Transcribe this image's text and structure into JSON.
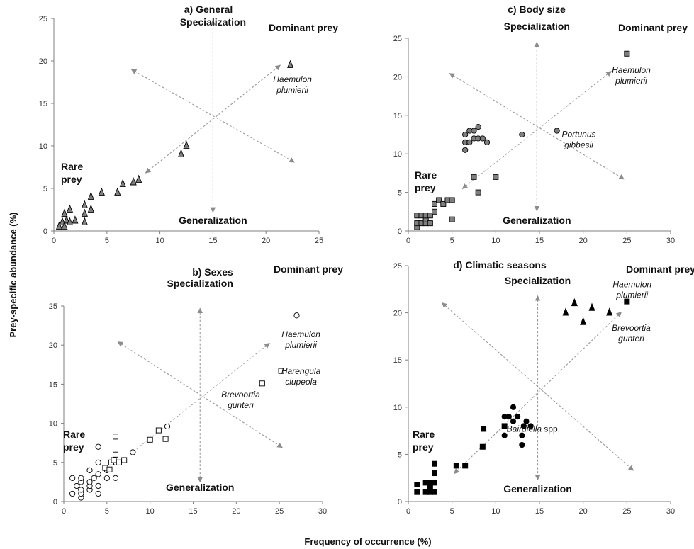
{
  "figure": {
    "y_title": "Prey-specific abundance (%)",
    "x_title": "Frequency of occurrence (%)"
  },
  "colors": {
    "axis": "#7f7f7f",
    "guide": "#9a9a9a",
    "gray_fill": "#7f7f7f",
    "black": "#000000",
    "white": "#ffffff"
  },
  "chart_data": [
    {
      "id": "a",
      "type": "scatter",
      "title": "a) General",
      "xlim": [
        0,
        25
      ],
      "ylim": [
        0,
        25
      ],
      "x_ticks": [
        "0",
        "5",
        "10",
        "15",
        "20",
        "25"
      ],
      "y_ticks": [
        "0",
        "5",
        "10",
        "15",
        "20",
        "25"
      ],
      "labels": {
        "top": "Specialization",
        "bottom": "Generalization",
        "corner": "Dominant prey",
        "rare": [
          "Rare",
          "prey"
        ]
      },
      "series": [
        {
          "marker": "triangle",
          "fill": "#7f7f7f",
          "points": [
            [
              0.5,
              0.5
            ],
            [
              0.8,
              1
            ],
            [
              1,
              0.5
            ],
            [
              1,
              2
            ],
            [
              1.2,
              1.2
            ],
            [
              1.5,
              1
            ],
            [
              1.5,
              2.5
            ],
            [
              2,
              1.2
            ],
            [
              2.9,
              1
            ],
            [
              2.9,
              2
            ],
            [
              2.9,
              3
            ],
            [
              3.5,
              2.5
            ],
            [
              3.5,
              4
            ],
            [
              4.5,
              4.5
            ],
            [
              6,
              4.5
            ],
            [
              6.5,
              5.5
            ],
            [
              7.5,
              5.7
            ],
            [
              8,
              6
            ],
            [
              12,
              9
            ],
            [
              12.5,
              10
            ],
            [
              22.3,
              19.5
            ]
          ]
        }
      ],
      "annotations": [
        {
          "lines": [
            "Haemulon",
            "plumierii"
          ],
          "italic": true,
          "x": 22.5,
          "y": 17.5
        }
      ]
    },
    {
      "id": "c",
      "type": "scatter",
      "title": "c) Body size",
      "xlim": [
        0,
        30
      ],
      "ylim": [
        0,
        25
      ],
      "x_ticks": [
        "0",
        "5",
        "10",
        "15",
        "20",
        "25",
        "30"
      ],
      "y_ticks": [
        "0",
        "5",
        "10",
        "15",
        "20",
        "25"
      ],
      "labels": {
        "top": "Specialization",
        "bottom": "Generalization",
        "corner": "Dominant  prey",
        "rare": [
          "Rare",
          "prey"
        ]
      },
      "series": [
        {
          "marker": "square",
          "fill": "#7f7f7f",
          "points": [
            [
              1,
              0.5
            ],
            [
              1,
              1
            ],
            [
              1,
              2
            ],
            [
              1.5,
              1
            ],
            [
              1.5,
              2
            ],
            [
              2,
              1
            ],
            [
              2,
              1.5
            ],
            [
              2,
              2
            ],
            [
              2.5,
              1
            ],
            [
              2.5,
              2
            ],
            [
              3,
              2.5
            ],
            [
              3,
              3.5
            ],
            [
              3.5,
              4
            ],
            [
              4,
              3.5
            ],
            [
              4.5,
              4
            ],
            [
              5,
              1.5
            ],
            [
              5,
              4
            ],
            [
              7.5,
              7
            ],
            [
              8,
              5
            ],
            [
              10,
              7
            ],
            [
              25,
              23
            ]
          ]
        },
        {
          "marker": "circle",
          "fill": "#7f7f7f",
          "points": [
            [
              6.5,
              10.5
            ],
            [
              6.5,
              11.5
            ],
            [
              6.5,
              12.5
            ],
            [
              7,
              11.5
            ],
            [
              7,
              13
            ],
            [
              7.5,
              12
            ],
            [
              7.5,
              13
            ],
            [
              8,
              13.5
            ],
            [
              8,
              12
            ],
            [
              8.5,
              12
            ],
            [
              9,
              11.5
            ],
            [
              13,
              12.5
            ],
            [
              17,
              13
            ]
          ]
        }
      ],
      "annotations": [
        {
          "lines": [
            "Haemulon",
            "plumierii"
          ],
          "italic": true,
          "x": 25.5,
          "y": 20.5
        },
        {
          "lines": [
            "Portunus",
            "gibbesii"
          ],
          "italic": true,
          "x": 19.5,
          "y": 12.2
        }
      ]
    },
    {
      "id": "b",
      "type": "scatter",
      "title": "b) Sexes",
      "xlim": [
        0,
        30
      ],
      "ylim": [
        0,
        25
      ],
      "x_ticks": [
        "0",
        "5",
        "10",
        "15",
        "20",
        "25",
        "30"
      ],
      "y_ticks": [
        "0",
        "5",
        "10",
        "15",
        "20",
        "25"
      ],
      "labels": {
        "top": "Specialization",
        "bottom": "Generalization",
        "corner": "Dominant prey",
        "rare": [
          "Rare",
          "prey"
        ]
      },
      "series": [
        {
          "marker": "circle",
          "fill": "#ffffff",
          "points": [
            [
              1,
              1
            ],
            [
              1,
              3
            ],
            [
              1.5,
              2
            ],
            [
              2,
              0.5
            ],
            [
              2,
              1
            ],
            [
              2,
              1.5
            ],
            [
              2,
              2.5
            ],
            [
              2,
              3
            ],
            [
              3,
              1.5
            ],
            [
              3,
              2
            ],
            [
              3,
              2.5
            ],
            [
              3,
              4
            ],
            [
              3.5,
              3
            ],
            [
              4,
              1
            ],
            [
              4,
              2
            ],
            [
              4,
              3.5
            ],
            [
              4,
              5
            ],
            [
              4,
              7
            ],
            [
              5,
              3
            ],
            [
              5,
              4
            ],
            [
              6,
              3
            ],
            [
              6,
              5
            ],
            [
              8,
              6.3
            ],
            [
              12,
              9.6
            ],
            [
              27,
              23.8
            ]
          ]
        },
        {
          "marker": "square",
          "fill": "#ffffff",
          "points": [
            [
              4.8,
              4.3
            ],
            [
              5.3,
              4.1
            ],
            [
              5.5,
              5
            ],
            [
              5.8,
              5.3
            ],
            [
              6,
              6
            ],
            [
              6,
              8.3
            ],
            [
              6.4,
              5
            ],
            [
              7,
              5.3
            ],
            [
              10,
              7.9
            ],
            [
              11,
              9.1
            ],
            [
              11.8,
              8
            ],
            [
              23,
              15.1
            ],
            [
              25.2,
              16.7
            ]
          ]
        }
      ],
      "annotations": [
        {
          "lines": [
            "Haemulon",
            "plumierii"
          ],
          "italic": true,
          "x": 27.5,
          "y": 21
        },
        {
          "lines": [
            "Harengula",
            "clupeola"
          ],
          "italic": true,
          "x": 27.5,
          "y": 16.3
        },
        {
          "lines": [
            "Brevoortia",
            "gunteri"
          ],
          "italic": true,
          "x": 20.5,
          "y": 13.3
        }
      ]
    },
    {
      "id": "d",
      "type": "scatter",
      "title": "d) Climatic seasons",
      "xlim": [
        0,
        30
      ],
      "ylim": [
        0,
        25
      ],
      "x_ticks": [
        "0",
        "5",
        "10",
        "15",
        "20",
        "25",
        "30"
      ],
      "y_ticks": [
        "0",
        "5",
        "10",
        "15",
        "20",
        "25"
      ],
      "labels": {
        "top": "Specialization",
        "bottom": "Generalization",
        "corner": "Dominant prey",
        "rare": [
          "Rare",
          "prey"
        ]
      },
      "series": [
        {
          "marker": "square",
          "fill": "#000000",
          "points": [
            [
              1,
              1
            ],
            [
              1,
              1.8
            ],
            [
              2,
              1
            ],
            [
              2,
              2
            ],
            [
              2.5,
              1
            ],
            [
              2.5,
              1.5
            ],
            [
              2.5,
              2
            ],
            [
              3,
              1
            ],
            [
              3,
              2
            ],
            [
              3,
              3
            ],
            [
              3,
              4
            ],
            [
              5.5,
              3.8
            ],
            [
              6.5,
              3.8
            ],
            [
              8.5,
              5.8
            ],
            [
              8.6,
              7.7
            ],
            [
              11,
              8
            ],
            [
              25,
              21.2
            ]
          ]
        },
        {
          "marker": "circle",
          "fill": "#000000",
          "points": [
            [
              11,
              7
            ],
            [
              11,
              9
            ],
            [
              11.5,
              9
            ],
            [
              12,
              10
            ],
            [
              12,
              8.5
            ],
            [
              12.5,
              9
            ],
            [
              13,
              7
            ],
            [
              13,
              6
            ],
            [
              13.2,
              8
            ],
            [
              13.5,
              8.5
            ],
            [
              14,
              8
            ]
          ]
        },
        {
          "marker": "triangle",
          "fill": "#000000",
          "points": [
            [
              18,
              20
            ],
            [
              19,
              21
            ],
            [
              20,
              19
            ],
            [
              21,
              20.5
            ],
            [
              23,
              20
            ]
          ]
        }
      ],
      "annotations": [
        {
          "lines": [
            "Haemulon",
            "plumierii"
          ],
          "italic": true,
          "x": 25.6,
          "y": 22.7
        },
        {
          "lines": [
            "Brevoortia",
            "gunteri"
          ],
          "italic": true,
          "x": 25.5,
          "y": 18.1
        },
        {
          "lines": [
            "Bairdiella"
          ],
          "italic": true,
          "suffix": " spp.",
          "x": 14.3,
          "y": 7.4
        }
      ]
    }
  ]
}
